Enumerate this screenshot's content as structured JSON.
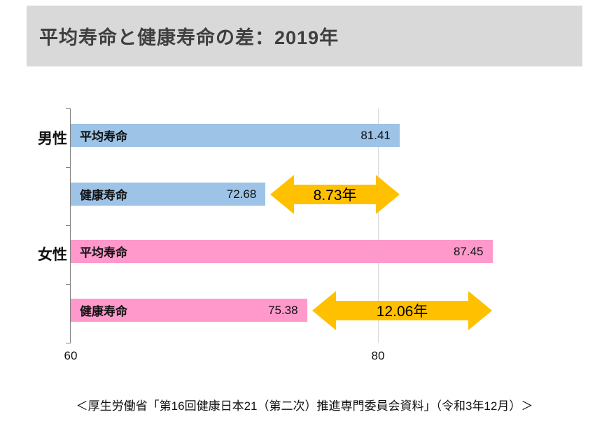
{
  "page": {
    "title": "平均寿命と健康寿命の差：2019年",
    "source": "＜厚生労働省「第16回健康日本21（第二次）推進専門委員会資料」（令和3年12月）＞"
  },
  "colors": {
    "banner_bg": "#D9D9D9",
    "male_bar": "#9DC3E6",
    "female_bar": "#FF99CC",
    "gap_arrow": "#FFC000",
    "gridline": "#D9D9D9"
  },
  "chart_data": {
    "type": "bar",
    "orientation": "horizontal",
    "title": "平均寿命と健康寿命の差：2019年",
    "xlabel": "",
    "ylabel": "",
    "x_axis": {
      "min": 60,
      "max": 90,
      "ticks": [
        60,
        80
      ],
      "gridline_at": 80
    },
    "legend": false,
    "groups": [
      {
        "name": "男性",
        "bar_color": "#9DC3E6",
        "bars": [
          {
            "label": "平均寿命",
            "value": 81.41
          },
          {
            "label": "健康寿命",
            "value": 72.68
          }
        ],
        "gap": {
          "from": 72.68,
          "to": 81.41,
          "value": 8.73,
          "label": "8.73年"
        }
      },
      {
        "name": "女性",
        "bar_color": "#FF99CC",
        "bars": [
          {
            "label": "平均寿命",
            "value": 87.45
          },
          {
            "label": "健康寿命",
            "value": 75.38
          }
        ],
        "gap": {
          "from": 75.38,
          "to": 87.45,
          "value": 12.06,
          "label": "12.06年"
        }
      }
    ]
  }
}
